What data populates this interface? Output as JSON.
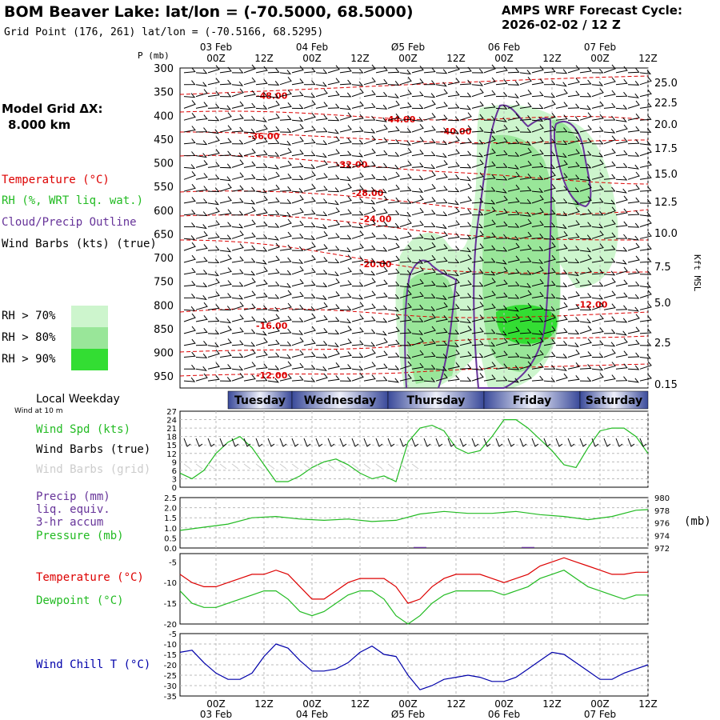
{
  "header": {
    "title": "BOM Beaver Lake:  lat/lon = (-70.5000, 68.5000)",
    "grid_point": "Grid Point (176, 261) lat/lon = (-70.5166, 68.5295)",
    "cycle_label": "AMPS WRF Forecast Cycle:",
    "cycle_value": "2026-02-02 / 12  Z"
  },
  "model": {
    "label": "Model Grid ΔX:",
    "value": "8.000 km"
  },
  "legend": {
    "temperature": "Temperature (°C)",
    "rh": "RH (%, WRT liq. wat.)",
    "cloud": "Cloud/Precip Outline",
    "wind": "Wind Barbs (kts) (true)",
    "rh_levels": [
      {
        "label": "RH > 70%",
        "color": "#cdf5cd"
      },
      {
        "label": "RH > 80%",
        "color": "#99e699"
      },
      {
        "label": "RH > 90%",
        "color": "#33dd33"
      }
    ]
  },
  "panel_labels": {
    "local_weekday": "Local Weekday",
    "wind_at": "Wind at 10 m",
    "wind_spd": "Wind Spd (kts)",
    "wind_barbs_true": "Wind Barbs (true)",
    "wind_barbs_grid": "Wind Barbs (grid)",
    "precip": "Precip (mm)",
    "liq": "liq. equiv.",
    "accum": "3-hr accum",
    "pressure": "Pressure (mb)",
    "pressure_unit": "(mb)",
    "temperature": "Temperature (°C)",
    "dewpoint": "Dewpoint (°C)",
    "windchill": "Wind Chill T (°C)",
    "p_axis": "P (mb)",
    "kft": "Kft MSL"
  },
  "colors": {
    "temp": "#dd0000",
    "rh_green": "#22bb22",
    "cloud": "#663399",
    "windchill": "#0000aa",
    "grid": "#aaaaaa",
    "day_bar": "#3a4a9a"
  },
  "chart_data": {
    "type": "line",
    "time_axis": {
      "hours": [
        0,
        12,
        24,
        36,
        48,
        60,
        72,
        84,
        96,
        108
      ],
      "tick_labels": [
        "00Z",
        "12Z",
        "00Z",
        "12Z",
        "00Z",
        "12Z",
        "00Z",
        "12Z",
        "00Z",
        "12Z"
      ],
      "dates": [
        {
          "hour": 0,
          "label": "03 Feb"
        },
        {
          "hour": 24,
          "label": "04 Feb"
        },
        {
          "hour": 48,
          "label": "Ø5 Feb"
        },
        {
          "hour": 72,
          "label": "06 Feb"
        },
        {
          "hour": 96,
          "label": "07 Feb"
        }
      ],
      "start_hour": -9,
      "end_hour": 108
    },
    "cross_section": {
      "pressure_levels": [
        300,
        350,
        400,
        450,
        500,
        550,
        600,
        650,
        700,
        750,
        800,
        850,
        900,
        950
      ],
      "height_kft": [
        "25.0",
        "22.5",
        "20.0",
        "17.5",
        "15.0",
        "12.5",
        "10.0",
        "7.5",
        "5.0",
        "2.5",
        "0.15"
      ],
      "temperature_labels": [
        {
          "text": "-48.00",
          "hour": 10,
          "p": 365
        },
        {
          "text": "-44.00",
          "hour": 42,
          "p": 415
        },
        {
          "text": "-40.00",
          "hour": 56,
          "p": 440
        },
        {
          "text": "-36.00",
          "hour": 8,
          "p": 450
        },
        {
          "text": "-32.00",
          "hour": 30,
          "p": 510
        },
        {
          "text": "-28.00",
          "hour": 34,
          "p": 570
        },
        {
          "text": "-24.00",
          "hour": 36,
          "p": 625
        },
        {
          "text": "-20.00",
          "hour": 36,
          "p": 720
        },
        {
          "text": "-12.00",
          "hour": 90,
          "p": 805
        },
        {
          "text": "-16.00",
          "hour": 10,
          "p": 850
        },
        {
          "text": "-12.00",
          "hour": 10,
          "p": 955
        }
      ]
    },
    "weekdays": [
      {
        "label": "Tuesday",
        "start_hour": 3,
        "end_hour": 19
      },
      {
        "label": "Wednesday",
        "start_hour": 19,
        "end_hour": 43
      },
      {
        "label": "Thursday",
        "start_hour": 43,
        "end_hour": 67
      },
      {
        "label": "Friday",
        "start_hour": 67,
        "end_hour": 91
      },
      {
        "label": "Saturday",
        "start_hour": 91,
        "end_hour": 108
      }
    ],
    "wind_speed": {
      "name": "Wind Spd (kts)",
      "ylim": [
        0,
        27
      ],
      "yticks": [
        0,
        3,
        6,
        9,
        12,
        15,
        18,
        21,
        24,
        27
      ],
      "x": [
        -9,
        -6,
        -3,
        0,
        3,
        6,
        9,
        12,
        15,
        18,
        21,
        24,
        27,
        30,
        33,
        36,
        39,
        42,
        45,
        48,
        51,
        54,
        57,
        60,
        63,
        66,
        69,
        72,
        75,
        78,
        81,
        84,
        87,
        90,
        93,
        96,
        99,
        102,
        105,
        108
      ],
      "values": [
        5,
        3,
        6,
        12,
        16,
        18,
        14,
        8,
        2,
        2,
        4,
        7,
        9,
        10,
        8,
        5,
        3,
        4,
        2,
        16,
        21,
        22,
        20,
        14,
        12,
        13,
        18,
        24,
        24,
        21,
        17,
        13,
        8,
        7,
        14,
        20,
        21,
        21,
        18,
        12
      ]
    },
    "pressure": {
      "name": "Pressure (mb)",
      "ylim": [
        972,
        980
      ],
      "yticks": [
        972,
        974,
        976,
        978,
        980
      ],
      "x": [
        -9,
        -3,
        3,
        9,
        15,
        21,
        27,
        33,
        39,
        45,
        51,
        57,
        63,
        69,
        75,
        81,
        87,
        93,
        99,
        105,
        108
      ],
      "values": [
        974.8,
        975.3,
        975.8,
        976.8,
        977.0,
        976.6,
        976.4,
        976.6,
        976.2,
        976.4,
        977.4,
        977.8,
        977.5,
        977.5,
        977.8,
        977.3,
        977.0,
        976.5,
        977.0,
        978.0,
        978.1
      ]
    },
    "precip": {
      "name": "Precip (mm)",
      "ylim": [
        0,
        2.5
      ],
      "yticks": [
        "0.0",
        "0.5",
        "1.0",
        "1.5",
        "2.0",
        "2.5"
      ],
      "x": [
        51,
        78
      ],
      "values": [
        0.05,
        0.05
      ]
    },
    "temperature": {
      "name": "Temperature (°C)",
      "ylim": [
        -20,
        -3
      ],
      "yticks": [
        -20,
        -15,
        -10,
        -5
      ],
      "x": [
        -9,
        -6,
        -3,
        0,
        3,
        6,
        9,
        12,
        15,
        18,
        21,
        24,
        27,
        30,
        33,
        36,
        39,
        42,
        45,
        48,
        51,
        54,
        57,
        60,
        63,
        66,
        69,
        72,
        75,
        78,
        81,
        84,
        87,
        90,
        93,
        96,
        99,
        102,
        105,
        108
      ],
      "values": [
        -8,
        -10,
        -11,
        -11,
        -10,
        -9,
        -8,
        -8,
        -7,
        -8,
        -11,
        -14,
        -14,
        -12,
        -10,
        -9,
        -9,
        -9,
        -11,
        -15,
        -14,
        -11,
        -9,
        -8,
        -8,
        -8,
        -9,
        -10,
        -9,
        -8,
        -6,
        -5,
        -4,
        -5,
        -6,
        -7,
        -8,
        -8,
        -7.5,
        -7.5
      ]
    },
    "dewpoint": {
      "name": "Dewpoint (°C)",
      "ylim": [
        -20,
        -3
      ],
      "yticks": [
        -20,
        -15,
        -10,
        -5
      ],
      "x": [
        -9,
        -6,
        -3,
        0,
        3,
        6,
        9,
        12,
        15,
        18,
        21,
        24,
        27,
        30,
        33,
        36,
        39,
        42,
        45,
        48,
        51,
        54,
        57,
        60,
        63,
        66,
        69,
        72,
        75,
        78,
        81,
        84,
        87,
        90,
        93,
        96,
        99,
        102,
        105,
        108
      ],
      "values": [
        -12,
        -15,
        -16,
        -16,
        -15,
        -14,
        -13,
        -12,
        -12,
        -14,
        -17,
        -18,
        -17,
        -15,
        -13,
        -12,
        -12,
        -14,
        -18,
        -20,
        -18,
        -15,
        -13,
        -12,
        -12,
        -12,
        -12,
        -13,
        -12,
        -11,
        -9,
        -8,
        -7,
        -9,
        -11,
        -12,
        -13,
        -14,
        -13,
        -13
      ]
    },
    "windchill": {
      "name": "Wind Chill T (°C)",
      "ylim": [
        -35,
        -5
      ],
      "yticks": [
        -35,
        -30,
        -25,
        -20,
        -15,
        -10,
        -5
      ],
      "x": [
        -9,
        -6,
        -3,
        0,
        3,
        6,
        9,
        12,
        15,
        18,
        21,
        24,
        27,
        30,
        33,
        36,
        39,
        42,
        45,
        48,
        51,
        54,
        57,
        60,
        63,
        66,
        69,
        72,
        75,
        78,
        81,
        84,
        87,
        90,
        93,
        96,
        99,
        102,
        105,
        108
      ],
      "values": [
        -14,
        -13,
        -19,
        -24,
        -27,
        -27,
        -24,
        -16,
        -10,
        -12,
        -18,
        -23,
        -23,
        -22,
        -19,
        -14,
        -11,
        -15,
        -16,
        -25,
        -32,
        -30,
        -27,
        -26,
        -25,
        -26,
        -28,
        -28,
        -26,
        -22,
        -18,
        -14,
        -15,
        -19,
        -23,
        -27,
        -27,
        -24,
        -22,
        -20
      ]
    }
  }
}
